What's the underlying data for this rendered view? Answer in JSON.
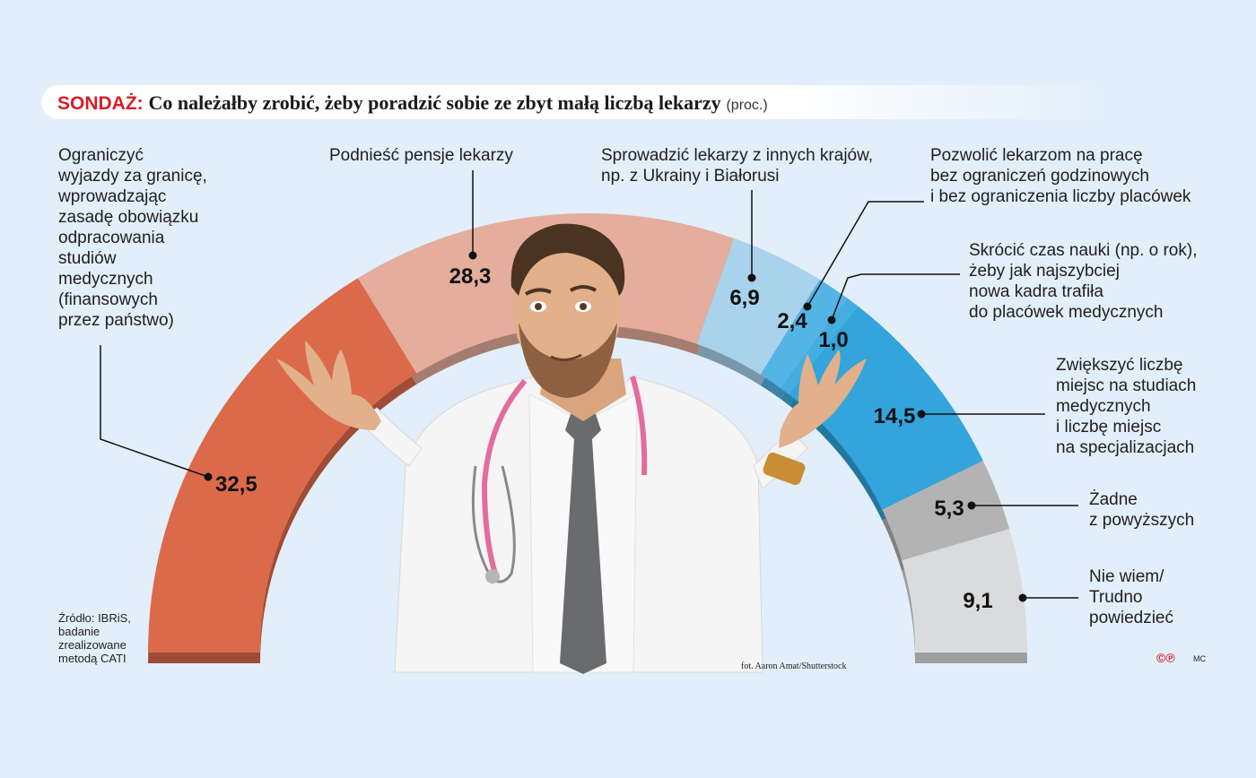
{
  "header": {
    "kicker": "SONDAŻ:",
    "title": "Co należałby zrobić, żeby poradzić sobie ze zbyt małą liczbą lekarzy",
    "unit": "(proc.)"
  },
  "chart_data": {
    "type": "pie",
    "variant": "half-donut",
    "title": "Co należałby zrobić, żeby poradzić sobie ze zbyt małą liczbą lekarzy",
    "unit": "(proc.)",
    "categories": [
      "Ograniczyć wyjazdy za granicę, wprowadzając zasadę obowiązku odpracowania studiów medycznych (finansowych przez państwo)",
      "Podnieść pensje lekarzy",
      "Sprowadzić lekarzy z innych krajów, np. z Ukrainy i Białorusi",
      "Pozwolić lekarzom na pracę bez ograniczeń godzinowych i bez ograniczenia liczby placówek",
      "Skrócić czas nauki (np. o rok), żeby jak najszybciej nowa kadra trafiła do placówek medycznych",
      "Zwiększyć liczbę miejsc na studiach medycznych i liczbę miejsc na specjalizacjach",
      "Żadne z powyższych",
      "Nie wiem/ Trudno powiedzieć"
    ],
    "values": [
      32.5,
      28.3,
      6.9,
      2.4,
      1.0,
      14.5,
      5.3,
      9.1
    ],
    "value_labels": [
      "32,5",
      "28,3",
      "6,9",
      "2,4",
      "1,0",
      "14,5",
      "5,3",
      "9,1"
    ],
    "colors": [
      "#db6a4b",
      "#e4ad9c",
      "#a9d2ec",
      "#54b4e6",
      "#44aee0",
      "#33a4dc",
      "#b3b3b4",
      "#dadbdc"
    ]
  },
  "labels": {
    "l0": "Ograniczyć\nwyjazdy za granicę,\nwprowadzając\nzasadę obowiązku\nodpracowania\nstudiów\nmedycznych\n(finansowych\nprzez państwo)",
    "l1": "Podnieść pensje lekarzy",
    "l2": "Sprowadzić lekarzy z innych krajów,\nnp. z Ukrainy i Białorusi",
    "l3": "Pozwolić lekarzom na pracę\nbez ograniczeń godzinowych\ni bez ograniczenia liczby placówek",
    "l4": "Skrócić czas nauki (np. o rok),\nżeby jak najszybciej\nnowa kadra trafiła\ndo placówek medycznych",
    "l5": "Zwiększyć liczbę\nmiejsc na studiach\nmedycznych\ni liczbę miejsc\nna specjalizacjach",
    "l6": "Żadne\nz powyższych",
    "l7": "Nie wiem/\nTrudno\npowiedzieć"
  },
  "source": "Źródło: IBRiS,\nbadanie\nzrealizowane\nmetodą CATI",
  "photo_credit": "fot. Aaron Amat/Shutterstock",
  "footer": {
    "cp_mark": "©℗",
    "initials": "MC"
  },
  "photo": {
    "description_icon": "doctor-shrugging-photo"
  }
}
